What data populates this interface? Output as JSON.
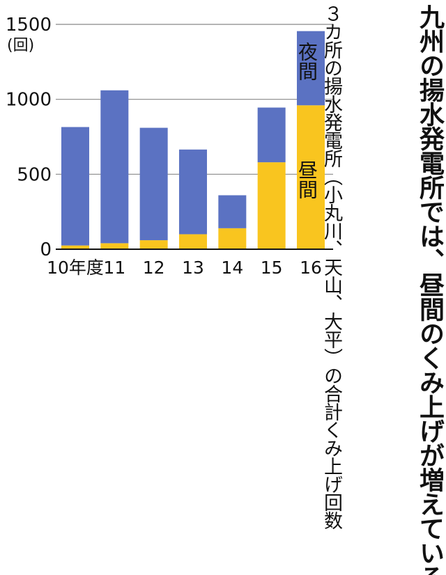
{
  "headline": "九州の揚水発電所では、昼間のくみ上げが増えている",
  "subhead": "３カ所の揚水発電所（小丸川、天山、大平）の合計くみ上げ回数",
  "chart_data": {
    "type": "bar",
    "stacked": true,
    "ylabel": "(回)",
    "ylim": [
      0,
      1500
    ],
    "yticks": [
      0,
      500,
      1000,
      1500
    ],
    "categories": [
      "10年度",
      "11",
      "12",
      "13",
      "14",
      "15",
      "16"
    ],
    "series": [
      {
        "name": "昼間",
        "color": "#f9c51f",
        "values": [
          25,
          40,
          60,
          100,
          140,
          580,
          960
        ]
      },
      {
        "name": "夜間",
        "color": "#5b72c2",
        "values": [
          790,
          1020,
          750,
          565,
          220,
          365,
          495
        ]
      }
    ],
    "grid": true
  }
}
